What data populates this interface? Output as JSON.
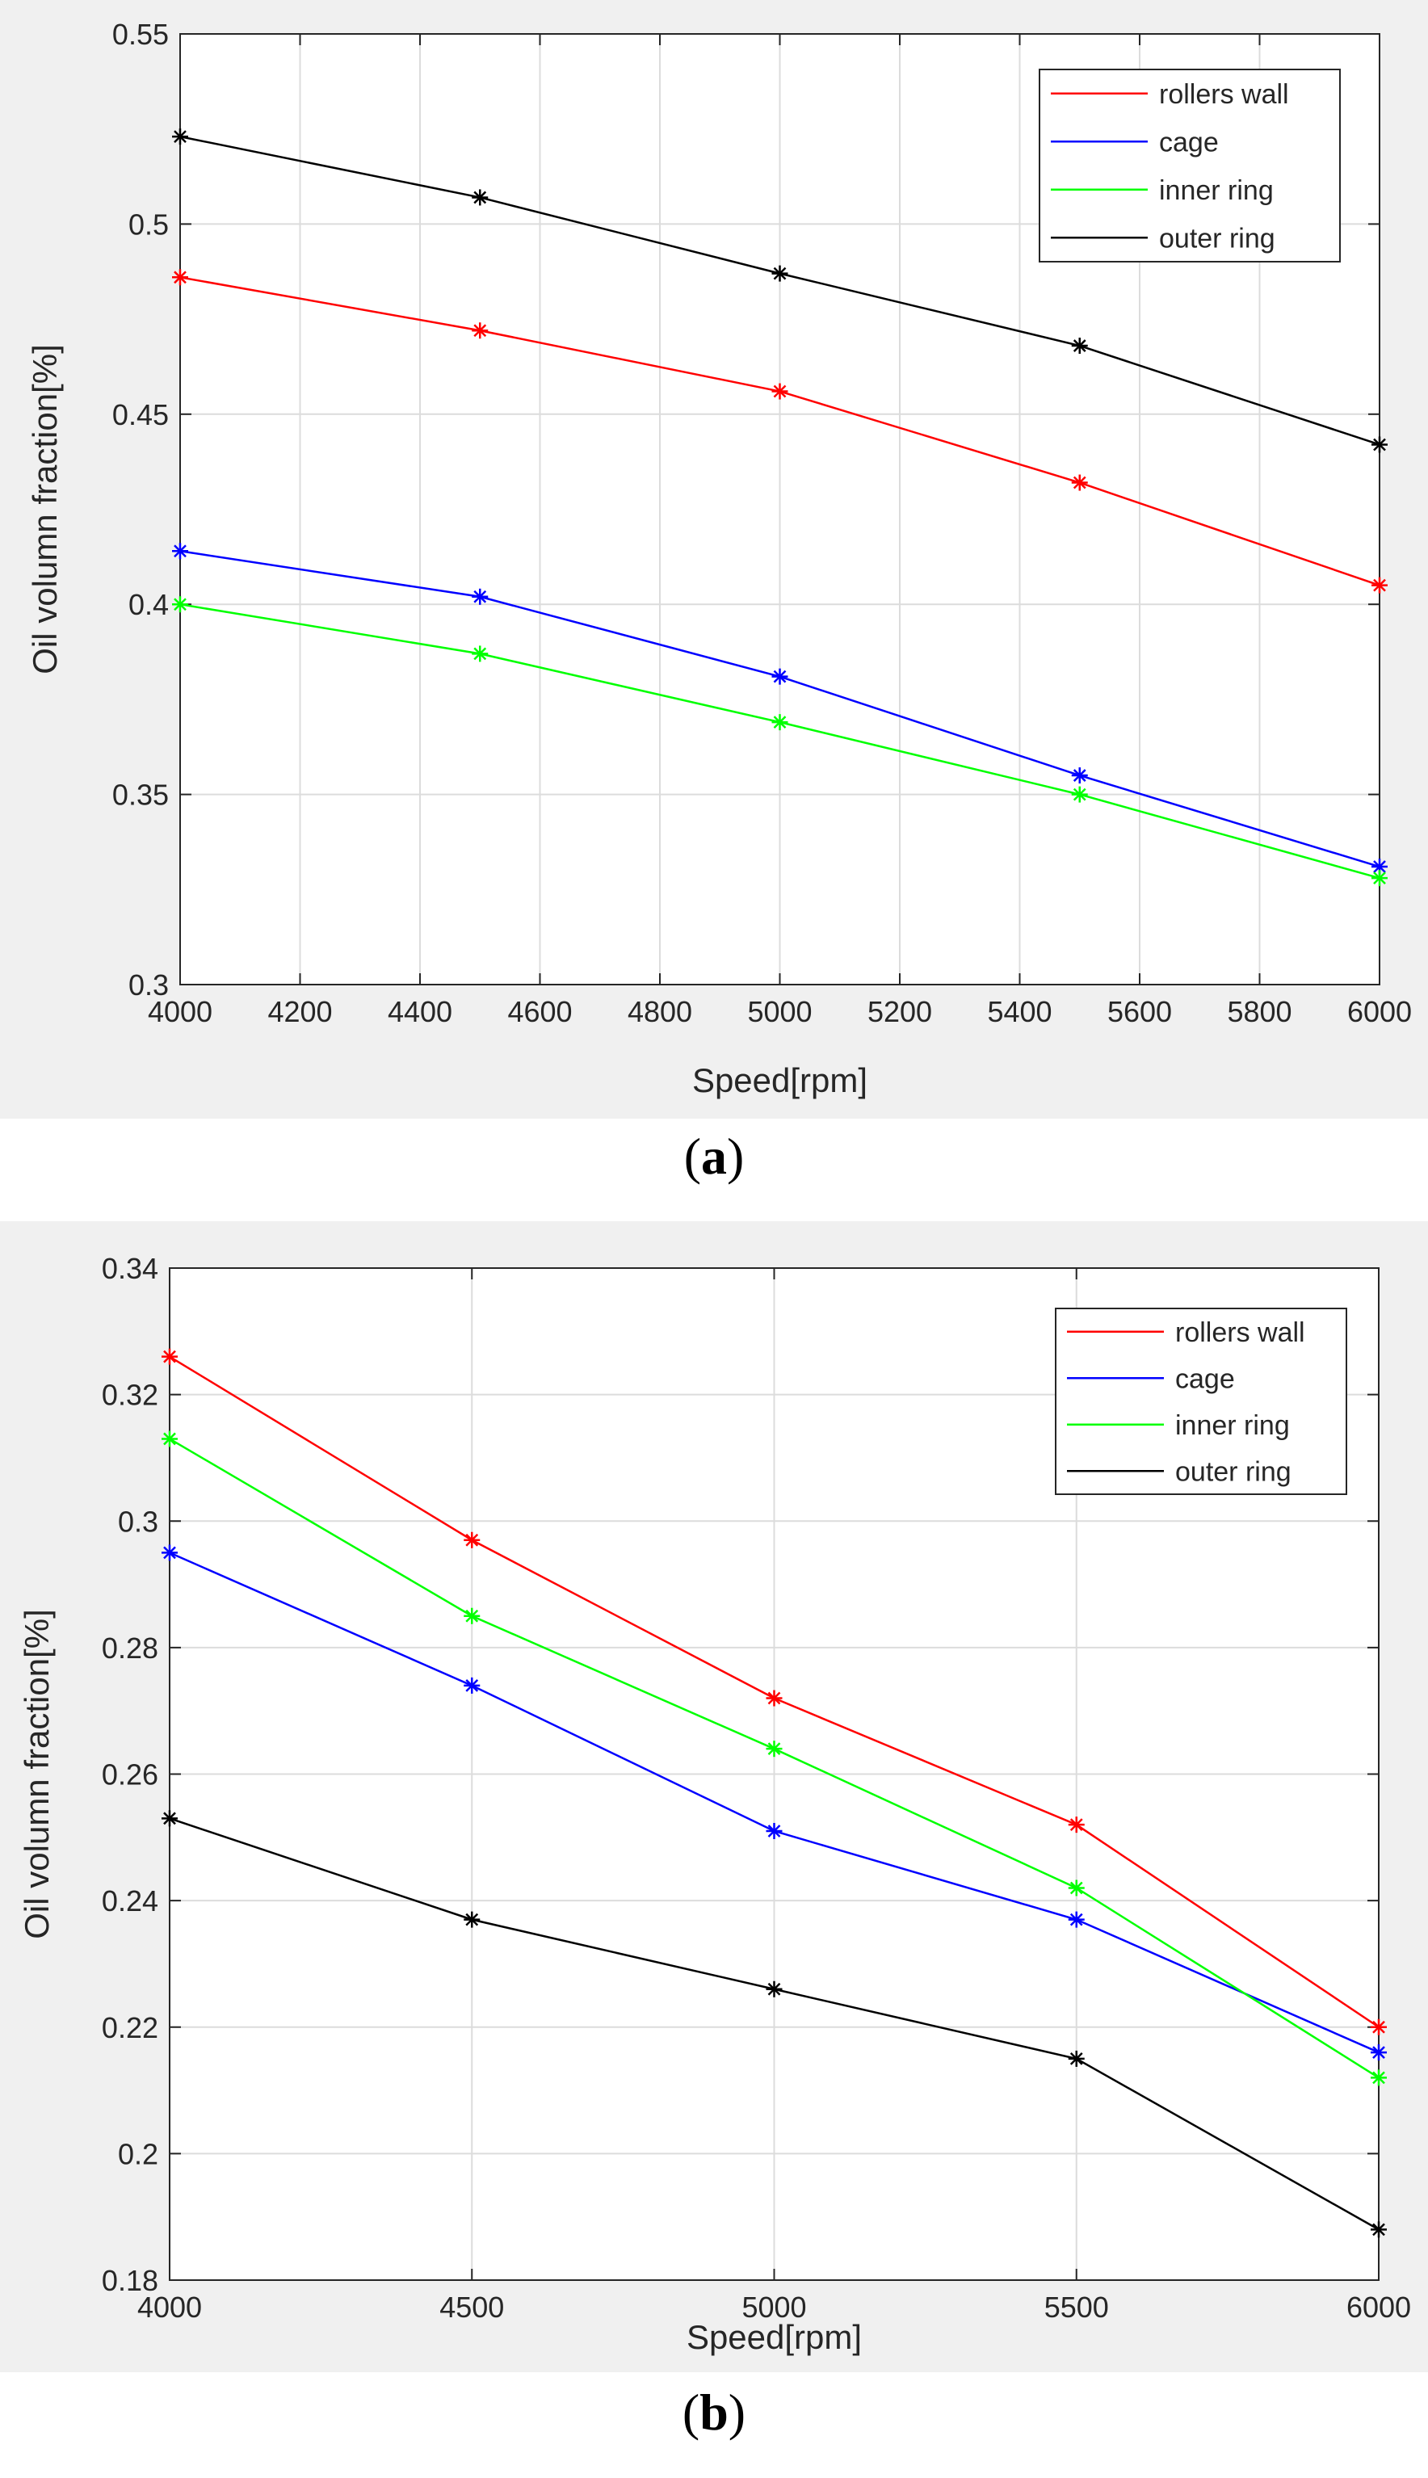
{
  "chart_data": [
    {
      "id": "a",
      "type": "line",
      "caption": "a",
      "title": "",
      "xlabel": "Speed[rpm]",
      "ylabel": "Oil volumn fraction[%]",
      "xlim": [
        4000,
        6000
      ],
      "ylim": [
        0.3,
        0.55
      ],
      "xticks": [
        4000,
        4200,
        4400,
        4600,
        4800,
        5000,
        5200,
        5400,
        5600,
        5800,
        6000
      ],
      "xtick_labels": [
        "4000",
        "4200",
        "4400",
        "4600",
        "4800",
        "5000",
        "5200",
        "5400",
        "5600",
        "5800",
        "6000"
      ],
      "yticks": [
        0.3,
        0.35,
        0.4,
        0.45,
        0.5,
        0.55
      ],
      "ytick_labels": [
        "0.3",
        "0.35",
        "0.4",
        "0.45",
        "0.5",
        "0.55"
      ],
      "grid": true,
      "legend_position": "top-right",
      "x": [
        4000,
        4500,
        5000,
        5500,
        6000
      ],
      "series": [
        {
          "name": "rollers wall",
          "color": "#ff0000",
          "values": [
            0.486,
            0.472,
            0.456,
            0.432,
            0.405
          ]
        },
        {
          "name": "cage",
          "color": "#0000ff",
          "values": [
            0.414,
            0.402,
            0.381,
            0.355,
            0.331
          ]
        },
        {
          "name": "inner ring",
          "color": "#00ff00",
          "values": [
            0.4,
            0.387,
            0.369,
            0.35,
            0.328
          ]
        },
        {
          "name": "outer ring",
          "color": "#000000",
          "values": [
            0.523,
            0.507,
            0.487,
            0.468,
            0.442
          ]
        }
      ]
    },
    {
      "id": "b",
      "type": "line",
      "caption": "b",
      "title": "",
      "xlabel": "Speed[rpm]",
      "ylabel": "Oil volumn fraction[%]",
      "xlim": [
        4000,
        6000
      ],
      "ylim": [
        0.18,
        0.34
      ],
      "xticks": [
        4000,
        4500,
        5000,
        5500,
        6000
      ],
      "xtick_labels": [
        "4000",
        "4500",
        "5000",
        "5500",
        "6000"
      ],
      "yticks": [
        0.18,
        0.2,
        0.22,
        0.24,
        0.26,
        0.28,
        0.3,
        0.32,
        0.34
      ],
      "ytick_labels": [
        "0.18",
        "0.2",
        "0.22",
        "0.24",
        "0.26",
        "0.28",
        "0.3",
        "0.32",
        "0.34"
      ],
      "grid": true,
      "legend_position": "top-right",
      "x": [
        4000,
        4500,
        5000,
        5500,
        6000
      ],
      "series": [
        {
          "name": "rollers wall",
          "color": "#ff0000",
          "values": [
            0.326,
            0.297,
            0.272,
            0.252,
            0.22
          ]
        },
        {
          "name": "cage",
          "color": "#0000ff",
          "values": [
            0.295,
            0.274,
            0.251,
            0.237,
            0.216
          ]
        },
        {
          "name": "inner ring",
          "color": "#00ff00",
          "values": [
            0.313,
            0.285,
            0.264,
            0.242,
            0.212
          ]
        },
        {
          "name": "outer ring",
          "color": "#000000",
          "values": [
            0.253,
            0.237,
            0.226,
            0.215,
            0.188
          ]
        }
      ]
    }
  ]
}
